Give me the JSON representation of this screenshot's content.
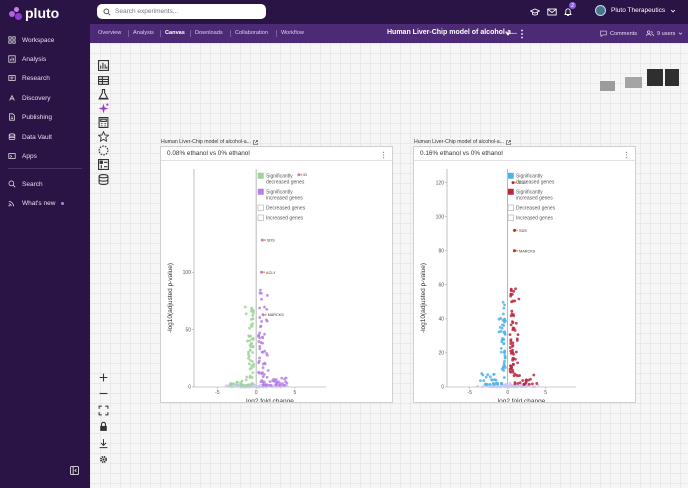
{
  "app": {
    "brand": "pluto",
    "nav": [
      {
        "label": "Workspace",
        "icon": "workspace-icon"
      },
      {
        "label": "Analysis",
        "icon": "analysis-icon"
      },
      {
        "label": "Research",
        "icon": "research-icon"
      },
      {
        "label": "Discovery",
        "icon": "discovery-icon"
      },
      {
        "label": "Publishing",
        "icon": "publishing-icon"
      },
      {
        "label": "Data Vault",
        "icon": "data-vault-icon"
      },
      {
        "label": "Apps",
        "icon": "apps-icon"
      },
      {
        "label": "Search",
        "icon": "search-icon"
      },
      {
        "label": "What's new",
        "icon": "whats-new-icon"
      }
    ]
  },
  "topbar": {
    "search_placeholder": "Search experiments...",
    "notification_count": "2",
    "org_name": "Pluto Therapeutics"
  },
  "subbar": {
    "tabs": [
      "Overview",
      "Analysis",
      "Canvas",
      "Downloads",
      "Collaboration",
      "Workflow"
    ],
    "active_tab": "Canvas",
    "project_title": "Human Liver-Chip model of alcohol-a...",
    "comments_label": "Comments",
    "users_label": "9 users"
  },
  "colors": {
    "sidebar_bg": "#2a1445",
    "subbar_bg": "#4d2a75",
    "decreased_green": "#9ed49a",
    "increased_purple": "#b67fe9",
    "decreased_blue": "#4fb3e8",
    "increased_red": "#b8283f",
    "insignificant": "#c9c9ef"
  },
  "plots": [
    {
      "label": "Human Liver-Chip model of alcohol-a...",
      "title": "0.08% ethanol vs 0% ethanol",
      "chart_data": {
        "type": "scatter",
        "title": "0.08% ethanol vs 0% ethanol",
        "xlabel": "log2 fold change",
        "ylabel": "-log10(adjusted p-value)",
        "x_ticks": [
          -5,
          0,
          5
        ],
        "y_ticks": [
          0,
          50,
          100
        ],
        "xlim": [
          -8,
          9
        ],
        "ylim": [
          0,
          190
        ],
        "legend": [
          "Significantly decreased genes",
          "Significantly increased genes",
          "Decreased genes",
          "Increased genes"
        ],
        "legend_position": "top-right",
        "annotations": [
          {
            "label": "ID",
            "x": 5.5,
            "y": 185
          },
          {
            "label": "SDS",
            "x": 0.8,
            "y": 128
          },
          {
            "label": "ACLY",
            "x": 0.7,
            "y": 100
          },
          {
            "label": "MARCKS",
            "x": 0.9,
            "y": 63
          }
        ]
      }
    },
    {
      "label": "Human Liver-Chip model of alcohol-a...",
      "title": "0.16% ethanol vs 0% ethanol",
      "chart_data": {
        "type": "scatter",
        "title": "0.16% ethanol vs 0% ethanol",
        "xlabel": "log2 fold change",
        "ylabel": "-log10(adjusted p-value)",
        "x_ticks": [
          -5,
          0,
          5
        ],
        "y_ticks": [
          0,
          20,
          40,
          60,
          80,
          100,
          120
        ],
        "xlim": [
          -8,
          9
        ],
        "ylim": [
          0,
          128
        ],
        "legend": [
          "Significantly decreased genes",
          "Significantly increased genes",
          "Decreased genes",
          "Increased genes"
        ],
        "legend_position": "top-right",
        "annotations": [
          {
            "label": "ACLY",
            "x": 0.7,
            "y": 120
          },
          {
            "label": "SDS",
            "x": 0.9,
            "y": 92
          },
          {
            "label": "MARCKS",
            "x": 0.9,
            "y": 80
          }
        ]
      }
    }
  ]
}
